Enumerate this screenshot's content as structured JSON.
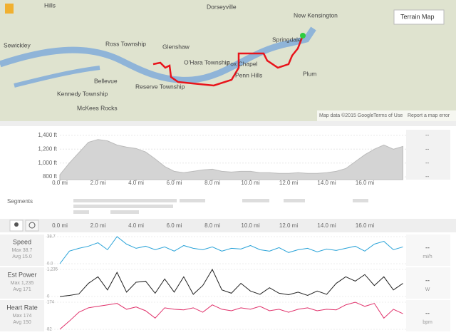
{
  "map": {
    "places": [
      "Hills",
      "Dorseyville",
      "New Kensington",
      "Sewickley",
      "Ross Township",
      "Glenshaw",
      "Springdale",
      "O'Hara Township",
      "Fox Chapel",
      "Penn Hills",
      "Plum",
      "Bellevue",
      "Reserve Township",
      "Kennedy Township",
      "McKees Rocks"
    ],
    "button": "Terrain Map",
    "attribution": [
      "Map data ©2015 Google",
      "Terms of Use",
      "Report a map error"
    ]
  },
  "elevation": {
    "x": [
      0,
      0.5,
      1,
      1.5,
      2,
      2.5,
      3,
      3.5,
      4,
      4.5,
      5,
      5.5,
      6,
      6.5,
      7,
      7.5,
      8,
      8.5,
      9,
      9.5,
      10,
      10.5,
      11,
      11.5,
      12,
      12.5,
      13,
      13.5,
      14,
      14.5,
      15,
      15.5,
      16,
      16.5,
      17,
      17.5,
      18
    ],
    "values": [
      830,
      1000,
      1150,
      1300,
      1340,
      1320,
      1260,
      1230,
      1210,
      1160,
      1060,
      950,
      880,
      860,
      880,
      900,
      910,
      880,
      870,
      880,
      880,
      860,
      860,
      850,
      850,
      860,
      850,
      850,
      860,
      880,
      920,
      1020,
      1120,
      1200,
      1260,
      1200,
      1240
    ],
    "xlim": [
      0,
      18.2
    ],
    "ylim": [
      760,
      1440
    ],
    "yticks": [
      {
        "value": 800,
        "label": "800 ft"
      },
      {
        "value": 1000,
        "label": "1,000 ft"
      },
      {
        "value": 1200,
        "label": "1,200 ft"
      },
      {
        "value": 1400,
        "label": "1,400 ft"
      }
    ],
    "xticks": [
      {
        "value": 0,
        "label": "0.0 mi"
      },
      {
        "value": 2,
        "label": "2.0 mi"
      },
      {
        "value": 4,
        "label": "4.0 mi"
      },
      {
        "value": 6,
        "label": "6.0 mi"
      },
      {
        "value": 8,
        "label": "8.0 mi"
      },
      {
        "value": 10,
        "label": "10.0 mi"
      },
      {
        "value": 12,
        "label": "12.0 mi"
      },
      {
        "value": 14,
        "label": "14.0 mi"
      },
      {
        "value": 16,
        "label": "16.0 mi"
      }
    ],
    "side": [
      "--",
      "--",
      "--",
      "--"
    ]
  },
  "segments": {
    "label": "Segments"
  },
  "streams": {
    "x": [
      0,
      0.5,
      1,
      1.5,
      2,
      2.5,
      3,
      3.5,
      4,
      4.5,
      5,
      5.5,
      6,
      6.5,
      7,
      7.5,
      8,
      8.5,
      9,
      9.5,
      10,
      10.5,
      11,
      11.5,
      12,
      12.5,
      13,
      13.5,
      14,
      14.5,
      15,
      15.5,
      16,
      16.5,
      17,
      17.5,
      18
    ],
    "xticks": [
      {
        "value": 0,
        "label": "0.0 mi"
      },
      {
        "value": 2,
        "label": "2.0 mi"
      },
      {
        "value": 4,
        "label": "4.0 mi"
      },
      {
        "value": 6,
        "label": "6.0 mi"
      },
      {
        "value": 8,
        "label": "8.0 mi"
      },
      {
        "value": 10,
        "label": "10.0 mi"
      },
      {
        "value": 12,
        "label": "12.0 mi"
      },
      {
        "value": 14,
        "label": "14.0 mi"
      },
      {
        "value": 16,
        "label": "16.0 mi"
      }
    ],
    "charts": [
      {
        "name": "Speed",
        "max": "Max 38.7",
        "avg": "Avg 15.0",
        "unit": "mi/h",
        "current": "--",
        "color": "#2aa3d8",
        "ylim": [
          0,
          38.7
        ],
        "yticks": [
          {
            "value": 0,
            "label": "0.0"
          },
          38.7
        ],
        "values": [
          0,
          18,
          22,
          25,
          30,
          20,
          38.7,
          28,
          22,
          25,
          20,
          24,
          18,
          26,
          22,
          20,
          24,
          18,
          22,
          21,
          26,
          20,
          18,
          23,
          16,
          20,
          22,
          17,
          21,
          19,
          22,
          25,
          18,
          28,
          32,
          20,
          24
        ]
      },
      {
        "name": "Est Power",
        "max": "Max 1,235",
        "avg": "Avg 171",
        "unit": "W",
        "current": "--",
        "color": "#222222",
        "ylim": [
          0,
          1235
        ],
        "yticks": [
          0,
          {
            "value": 1235,
            "label": "1,235"
          }
        ],
        "values": [
          0,
          50,
          120,
          600,
          900,
          300,
          1100,
          200,
          650,
          700,
          150,
          800,
          200,
          900,
          100,
          500,
          1235,
          300,
          150,
          600,
          250,
          100,
          400,
          150,
          80,
          200,
          50,
          250,
          100,
          600,
          900,
          700,
          1000,
          500,
          900,
          300,
          600
        ]
      },
      {
        "name": "Heart Rate",
        "max": "Max 174",
        "avg": "Avg 150",
        "unit": "bpm",
        "current": "--",
        "color": "#e0306a",
        "ylim": [
          82,
          174
        ],
        "yticks": [
          82,
          174
        ],
        "values": [
          82,
          110,
          140,
          155,
          160,
          165,
          170,
          150,
          158,
          145,
          120,
          155,
          150,
          148,
          155,
          140,
          165,
          150,
          145,
          155,
          150,
          160,
          145,
          150,
          140,
          150,
          155,
          145,
          150,
          148,
          165,
          174,
          160,
          170,
          120,
          150,
          135
        ]
      }
    ]
  }
}
